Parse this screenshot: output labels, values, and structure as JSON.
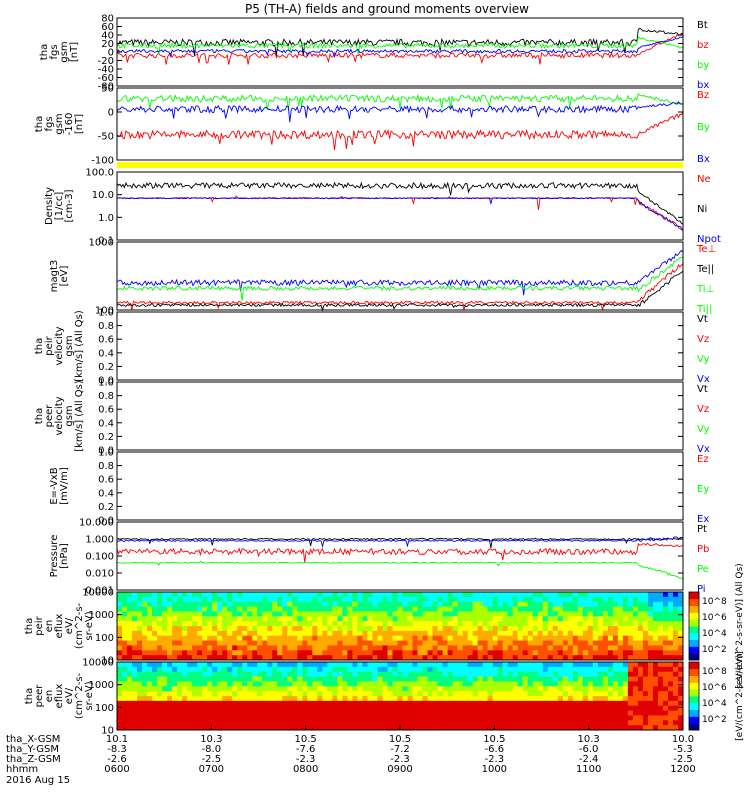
{
  "title": "P5 (TH-A) fields and ground moments overview",
  "date_label": "2016 Aug 15",
  "colors": {
    "black": "#000000",
    "red": "#ff0000",
    "green": "#00ff00",
    "blue": "#0000ff",
    "yellow": "#ffff00"
  },
  "chart_data": [
    {
      "type": "line",
      "ylabel": [
        "tha",
        "fgs",
        "gsm",
        "[nT]"
      ],
      "ylim": [
        -80,
        80
      ],
      "ticks": [
        "80",
        "60",
        "40",
        "20",
        "0",
        "-20",
        "-40",
        "-60",
        "-80"
      ],
      "legend": [
        {
          "name": "Bt",
          "color": "black"
        },
        {
          "name": "bz",
          "color": "red"
        },
        {
          "name": "by",
          "color": "green"
        },
        {
          "name": "bx",
          "color": "blue"
        }
      ],
      "series": [
        {
          "name": "Bt",
          "color": "black",
          "level": 22,
          "noise": 8,
          "end": [
            55,
            40
          ]
        },
        {
          "name": "bz",
          "color": "red",
          "level": -8,
          "noise": 6,
          "end": [
            -5,
            45
          ]
        },
        {
          "name": "by",
          "color": "green",
          "level": 15,
          "noise": 6,
          "end": [
            35,
            10
          ]
        },
        {
          "name": "bx",
          "color": "blue",
          "level": 2,
          "noise": 4,
          "end": [
            10,
            35
          ]
        }
      ]
    },
    {
      "type": "line",
      "ylabel": [
        "tha",
        "fgs",
        "gsm",
        "-160",
        "[nT]"
      ],
      "ylim": [
        -120,
        50
      ],
      "ticks": [
        "50",
        "0",
        "-50",
        "-100"
      ],
      "legend": [
        {
          "name": "Bz",
          "color": "red"
        },
        {
          "name": "By",
          "color": "green"
        },
        {
          "name": "Bx",
          "color": "blue"
        }
      ],
      "series": [
        {
          "name": "Bz",
          "color": "red",
          "level": -60,
          "noise": 10,
          "end": [
            -60,
            -10
          ]
        },
        {
          "name": "By",
          "color": "green",
          "level": 25,
          "noise": 8,
          "end": [
            35,
            10
          ]
        },
        {
          "name": "Bx",
          "color": "blue",
          "level": 0,
          "noise": 8,
          "end": [
            5,
            15
          ]
        }
      ]
    },
    {
      "type": "line",
      "log": true,
      "ylabel": [
        "Density",
        "[1/cc]",
        "[cm-3]"
      ],
      "ylim": [
        0.1,
        100
      ],
      "ticks": [
        "100.0",
        "10.0",
        "1.0",
        "0.1"
      ],
      "legend": [
        {
          "name": "Ne",
          "color": "red"
        },
        {
          "name": "Ni",
          "color": "black"
        },
        {
          "name": "Npot",
          "color": "blue"
        }
      ],
      "series": [
        {
          "name": "Ni",
          "color": "black",
          "level": 25,
          "noise": 0.25,
          "end": [
            15,
            0.5
          ]
        },
        {
          "name": "Ne",
          "color": "red",
          "level": 7,
          "noise": 0.05,
          "end": [
            5,
            0.3
          ]
        },
        {
          "name": "Npot",
          "color": "blue",
          "level": 7,
          "noise": 0.05,
          "end": [
            5,
            0.3
          ]
        }
      ]
    },
    {
      "type": "line",
      "log": true,
      "ylabel": [
        "magt3",
        "[eV]"
      ],
      "ylim": [
        30,
        8000
      ],
      "ticks": [
        "1000",
        "100"
      ],
      "legend": [
        {
          "name": "Te⊥",
          "color": "red"
        },
        {
          "name": "Te||",
          "color": "black"
        },
        {
          "name": "Ti⊥",
          "color": "green"
        },
        {
          "name": "Ti||",
          "color": "green"
        }
      ],
      "series": [
        {
          "name": "Ti⊥",
          "color": "blue",
          "level": 280,
          "noise": 0.2,
          "end": [
            300,
            4000
          ]
        },
        {
          "name": "Ti||",
          "color": "green",
          "level": 180,
          "noise": 0.15,
          "end": [
            150,
            2500
          ]
        },
        {
          "name": "Te⊥",
          "color": "red",
          "level": 55,
          "noise": 0.1,
          "end": [
            60,
            1500
          ]
        },
        {
          "name": "Te||",
          "color": "black",
          "level": 45,
          "noise": 0.1,
          "end": [
            40,
            800
          ]
        }
      ]
    },
    {
      "type": "line",
      "ylabel": [
        "tha",
        "peir",
        "velocity",
        "gsm",
        "[km/s] (All Qs)"
      ],
      "ylim": [
        0,
        1
      ],
      "ticks": [
        "1.0",
        "0.8",
        "0.6",
        "0.4",
        "0.2",
        "0.0"
      ],
      "legend": [
        {
          "name": "Vt",
          "color": "black"
        },
        {
          "name": "Vz",
          "color": "red"
        },
        {
          "name": "Vy",
          "color": "green"
        },
        {
          "name": "Vx",
          "color": "blue"
        }
      ],
      "series": []
    },
    {
      "type": "line",
      "ylabel": [
        "tha",
        "peer",
        "velocity",
        "gsm",
        "[km/s] (All Qs)"
      ],
      "ylim": [
        0,
        1
      ],
      "ticks": [
        "1.0",
        "0.8",
        "0.6",
        "0.4",
        "0.2",
        "0.0"
      ],
      "legend": [
        {
          "name": "Vt",
          "color": "black"
        },
        {
          "name": "Vz",
          "color": "red"
        },
        {
          "name": "Vy",
          "color": "green"
        },
        {
          "name": "Vx",
          "color": "blue"
        }
      ],
      "series": []
    },
    {
      "type": "line",
      "ylabel": [
        "E=-VxB",
        "[mV/m]"
      ],
      "ylim": [
        0,
        1
      ],
      "ticks": [
        "1.0",
        "0.8",
        "0.6",
        "0.4",
        "0.2",
        "0.0"
      ],
      "legend": [
        {
          "name": "Ez",
          "color": "red"
        },
        {
          "name": "Ey",
          "color": "green"
        },
        {
          "name": "Ex",
          "color": "blue"
        }
      ],
      "series": []
    },
    {
      "type": "line",
      "log": true,
      "ylabel": [
        "Pressure",
        "[nPa]"
      ],
      "ylim": [
        0.001,
        10
      ],
      "ticks": [
        "10.000",
        "1.000",
        "0.100",
        "0.010",
        "0.001"
      ],
      "legend": [
        {
          "name": "Pt",
          "color": "black"
        },
        {
          "name": "Pb",
          "color": "red"
        },
        {
          "name": "Pe",
          "color": "green"
        },
        {
          "name": "Pi",
          "color": "blue"
        }
      ],
      "series": [
        {
          "name": "Pt",
          "color": "black",
          "level": 1.0,
          "noise": 0.08,
          "end": [
            1.0,
            1.0
          ]
        },
        {
          "name": "Pi",
          "color": "blue",
          "level": 0.8,
          "noise": 0.08,
          "end": [
            0.8,
            1.2
          ]
        },
        {
          "name": "Pb",
          "color": "red",
          "level": 0.18,
          "noise": 0.35,
          "end": [
            0.5,
            0.4
          ]
        },
        {
          "name": "Pe",
          "color": "green",
          "level": 0.04,
          "noise": 0.05,
          "end": [
            0.03,
            0.005
          ]
        }
      ]
    },
    {
      "type": "heatmap",
      "ylabel": [
        "tha",
        "peir",
        "en",
        "eflux",
        "eV/",
        "(cm^2-s-",
        "sr-eV)"
      ],
      "ylim": [
        5,
        25000
      ],
      "ticks": [
        "10000",
        "1000",
        "100",
        "10"
      ],
      "colorbar": {
        "label": "[eV/(cm^2-s-sr-eV)] (All Qs)",
        "ticks": [
          "10^8",
          "10^6",
          "10^4",
          "10^2"
        ]
      }
    },
    {
      "type": "heatmap",
      "ylabel": [
        "tha",
        "peer",
        "en",
        "eflux",
        "eV/",
        "(cm^2-s-",
        "sr-eV)"
      ],
      "ylim": [
        5,
        25000
      ],
      "ticks": [
        "10000",
        "1000",
        "100",
        "10"
      ],
      "colorbar": {
        "label": "[eV/(cm^2-s-sr-eV)]",
        "ticks": [
          "10^8",
          "10^6",
          "10^4",
          "10^2"
        ]
      }
    }
  ],
  "time_axis": {
    "row_labels": [
      "tha_X-GSM",
      "tha_Y-GSM",
      "tha_Z-GSM",
      "hhmm"
    ],
    "columns": [
      [
        "10.1",
        "-8.3",
        "-2.6",
        "0600"
      ],
      [
        "10.3",
        "-8.0",
        "-2.5",
        "0700"
      ],
      [
        "10.5",
        "-7.6",
        "-2.3",
        "0800"
      ],
      [
        "10.5",
        "-7.2",
        "-2.3",
        "0900"
      ],
      [
        "10.5",
        "-6.6",
        "-2.3",
        "1000"
      ],
      [
        "10.3",
        "-6.0",
        "-2.4",
        "1100"
      ],
      [
        "10.0",
        "-5.3",
        "-2.5",
        "1200"
      ]
    ]
  }
}
